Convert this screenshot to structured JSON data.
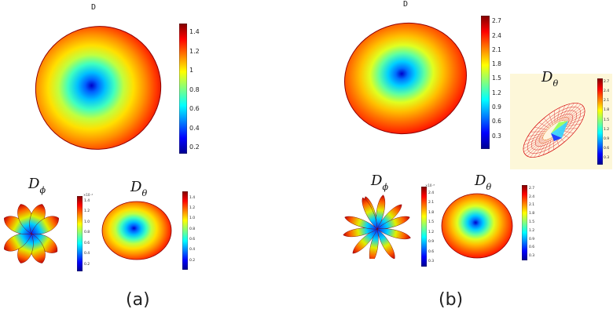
{
  "panel_a": {
    "title": "D",
    "caption": "(a)",
    "main_colorbar_ticks": [
      "1.4",
      "1.2",
      "1",
      "0.8",
      "0.6",
      "0.4",
      "0.2"
    ],
    "sub_left_label": {
      "base": "D",
      "sub": "ϕ"
    },
    "sub_left_colorbar_ticks": [
      "1.4",
      "1.2",
      "1.0",
      "0.8",
      "0.6",
      "0.4",
      "0.2"
    ],
    "sub_left_colorbar_exp": "×10⁻⁴",
    "sub_right_label": {
      "base": "D",
      "sub": "θ"
    },
    "sub_right_colorbar_ticks": [
      "1.4",
      "1.2",
      "1.0",
      "0.8",
      "0.6",
      "0.4",
      "0.2"
    ]
  },
  "panel_b": {
    "title": "D",
    "caption": "(b)",
    "main_colorbar_ticks": [
      "2.7",
      "2.4",
      "2.1",
      "1.8",
      "1.5",
      "1.2",
      "0.9",
      "0.6",
      "0.3"
    ],
    "inset_label": {
      "base": "D",
      "sub": "θ"
    },
    "inset_colorbar_ticks": [
      "2.7",
      "2.4",
      "2.1",
      "1.8",
      "1.5",
      "1.2",
      "0.9",
      "0.6",
      "0.3"
    ],
    "sub_left_label": {
      "base": "D",
      "sub": "ϕ"
    },
    "sub_left_colorbar_ticks": [
      "2.4",
      "2.1",
      "1.8",
      "1.5",
      "1.2",
      "0.9",
      "0.6",
      "0.3"
    ],
    "sub_left_colorbar_exp": "×10⁻⁸",
    "sub_right_label": {
      "base": "D",
      "sub": "θ"
    },
    "sub_right_colorbar_ticks": [
      "2.7",
      "2.4",
      "2.1",
      "1.8",
      "1.5",
      "1.2",
      "0.9",
      "0.6",
      "0.3"
    ]
  },
  "colors": {
    "inset_background": "#fdf7d9"
  }
}
